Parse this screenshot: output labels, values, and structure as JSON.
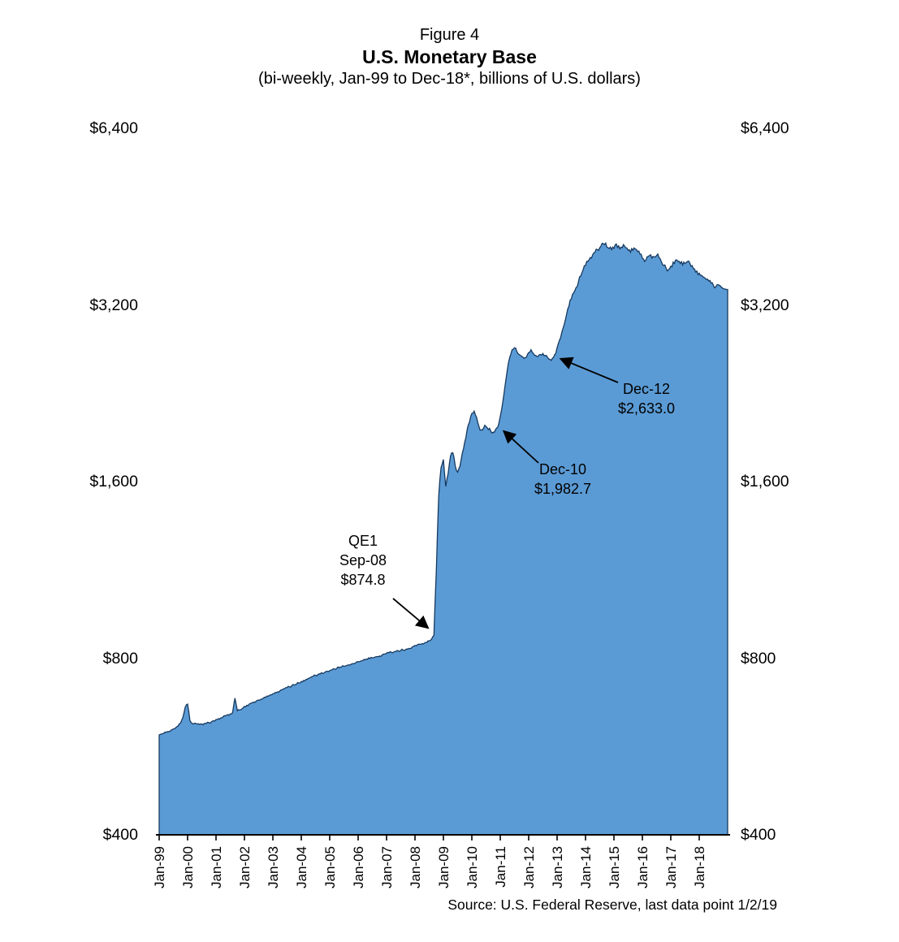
{
  "figure": {
    "label": "Figure 4",
    "title": "U.S. Monetary Base",
    "subtitle": "(bi-weekly, Jan-99 to Dec-18*, billions of U.S. dollars)",
    "source": "Source: U.S. Federal Reserve, last data point 1/2/19"
  },
  "chart_data": {
    "type": "area",
    "title": "U.S. Monetary Base",
    "subtitle": "(bi-weekly, Jan-99 to Dec-18*, billions of U.S. dollars)",
    "xlabel": "",
    "ylabel": "billions of U.S. dollars",
    "y_scale": "log2",
    "ylim": [
      400,
      6400
    ],
    "y_ticks": [
      400,
      800,
      1600,
      3200,
      6400
    ],
    "y_tick_labels": [
      "$400",
      "$800",
      "$1,600",
      "$3,200",
      "$6,400"
    ],
    "x_tick_labels": [
      "Jan-99",
      "Jan-00",
      "Jan-01",
      "Jan-02",
      "Jan-03",
      "Jan-04",
      "Jan-05",
      "Jan-06",
      "Jan-07",
      "Jan-08",
      "Jan-09",
      "Jan-10",
      "Jan-11",
      "Jan-12",
      "Jan-13",
      "Jan-14",
      "Jan-15",
      "Jan-16",
      "Jan-17",
      "Jan-18"
    ],
    "x_start_year": 1999,
    "x_step_years": 0.0833333,
    "grid": false,
    "legend": "none",
    "colors": {
      "fill": "#5B9BD5",
      "stroke": "#16395F",
      "axis": "#000000"
    },
    "series": [
      {
        "name": "U.S. Monetary Base (billions USD, monthly readings)",
        "values": [
          592,
          594,
          596,
          598,
          600,
          603,
          606,
          609,
          613,
          620,
          634,
          660,
          668,
          626,
          619,
          620,
          618,
          617,
          618,
          619,
          620,
          621,
          623,
          626,
          629,
          631,
          633,
          636,
          638,
          641,
          643,
          646,
          684,
          651,
          653,
          656,
          662,
          665,
          668,
          671,
          673,
          676,
          679,
          681,
          684,
          686,
          689,
          693,
          696,
          699,
          701,
          704,
          707,
          710,
          713,
          715,
          718,
          720,
          723,
          726,
          730,
          733,
          736,
          739,
          742,
          745,
          748,
          750,
          752,
          754,
          757,
          760,
          762,
          764,
          767,
          769,
          771,
          773,
          775,
          777,
          779,
          781,
          783,
          786,
          789,
          791,
          793,
          795,
          797,
          799,
          801,
          803,
          805,
          807,
          809,
          813,
          816,
          817,
          819,
          820,
          822,
          823,
          825,
          826,
          827,
          829,
          831,
          837,
          841,
          843,
          845,
          847,
          849,
          851,
          856,
          862,
          874.8,
          1130,
          1510,
          1690,
          1745,
          1570,
          1650,
          1770,
          1790,
          1700,
          1660,
          1700,
          1790,
          1870,
          1960,
          2020,
          2090,
          2110,
          2060,
          1985,
          1960,
          1975,
          1985,
          1962,
          1950,
          1942,
          1962,
          1982.7,
          2065,
          2175,
          2325,
          2485,
          2605,
          2685,
          2705,
          2665,
          2635,
          2615,
          2595,
          2605,
          2655,
          2685,
          2645,
          2625,
          2615,
          2635,
          2645,
          2625,
          2605,
          2585,
          2595,
          2633,
          2705,
          2785,
          2875,
          2965,
          3085,
          3185,
          3275,
          3355,
          3425,
          3505,
          3585,
          3675,
          3735,
          3795,
          3855,
          3895,
          3935,
          3975,
          4005,
          4075,
          4055,
          4015,
          3995,
          3975,
          3995,
          4065,
          4035,
          4015,
          4055,
          4005,
          3965,
          3935,
          3965,
          3985,
          3945,
          3905,
          3845,
          3795,
          3865,
          3885,
          3845,
          3865,
          3885,
          3855,
          3795,
          3735,
          3695,
          3675,
          3725,
          3785,
          3815,
          3795,
          3765,
          3745,
          3765,
          3795,
          3775,
          3735,
          3685,
          3655,
          3625,
          3595,
          3565,
          3535,
          3515,
          3485,
          3455,
          3435,
          3465,
          3445,
          3415,
          3405,
          3400
        ]
      }
    ],
    "annotations": [
      {
        "lines": [
          "QE1",
          "Sep-08",
          "$874.8"
        ],
        "x": 2008.667,
        "value": 874.8
      },
      {
        "lines": [
          "Dec-10",
          "$1,982.7"
        ],
        "x": 2010.917,
        "value": 1982.7
      },
      {
        "lines": [
          "Dec-12",
          "$2,633.0"
        ],
        "x": 2012.917,
        "value": 2633.0
      }
    ]
  }
}
